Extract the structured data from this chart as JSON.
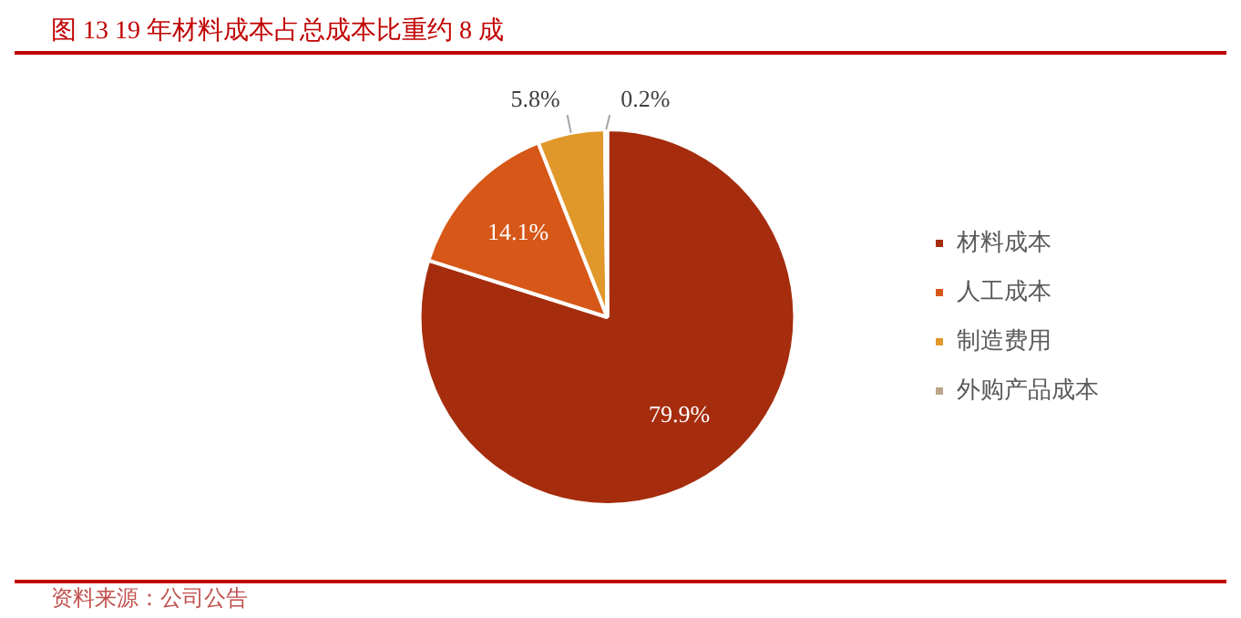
{
  "chart_data": {
    "type": "pie",
    "title": "图 13 19 年材料成本占总成本比重约 8 成",
    "categories": [
      "材料成本",
      "人工成本",
      "制造费用",
      "外购产品成本"
    ],
    "values": [
      79.9,
      14.1,
      5.8,
      0.2
    ],
    "colors": [
      "#a52d0e",
      "#d65717",
      "#e0982a",
      "#bba58a"
    ],
    "value_labels": [
      "79.9%",
      "14.1%",
      "5.8%",
      "0.2%"
    ],
    "legend": "right",
    "annotations": [
      "资料来源：公司公告"
    ]
  }
}
